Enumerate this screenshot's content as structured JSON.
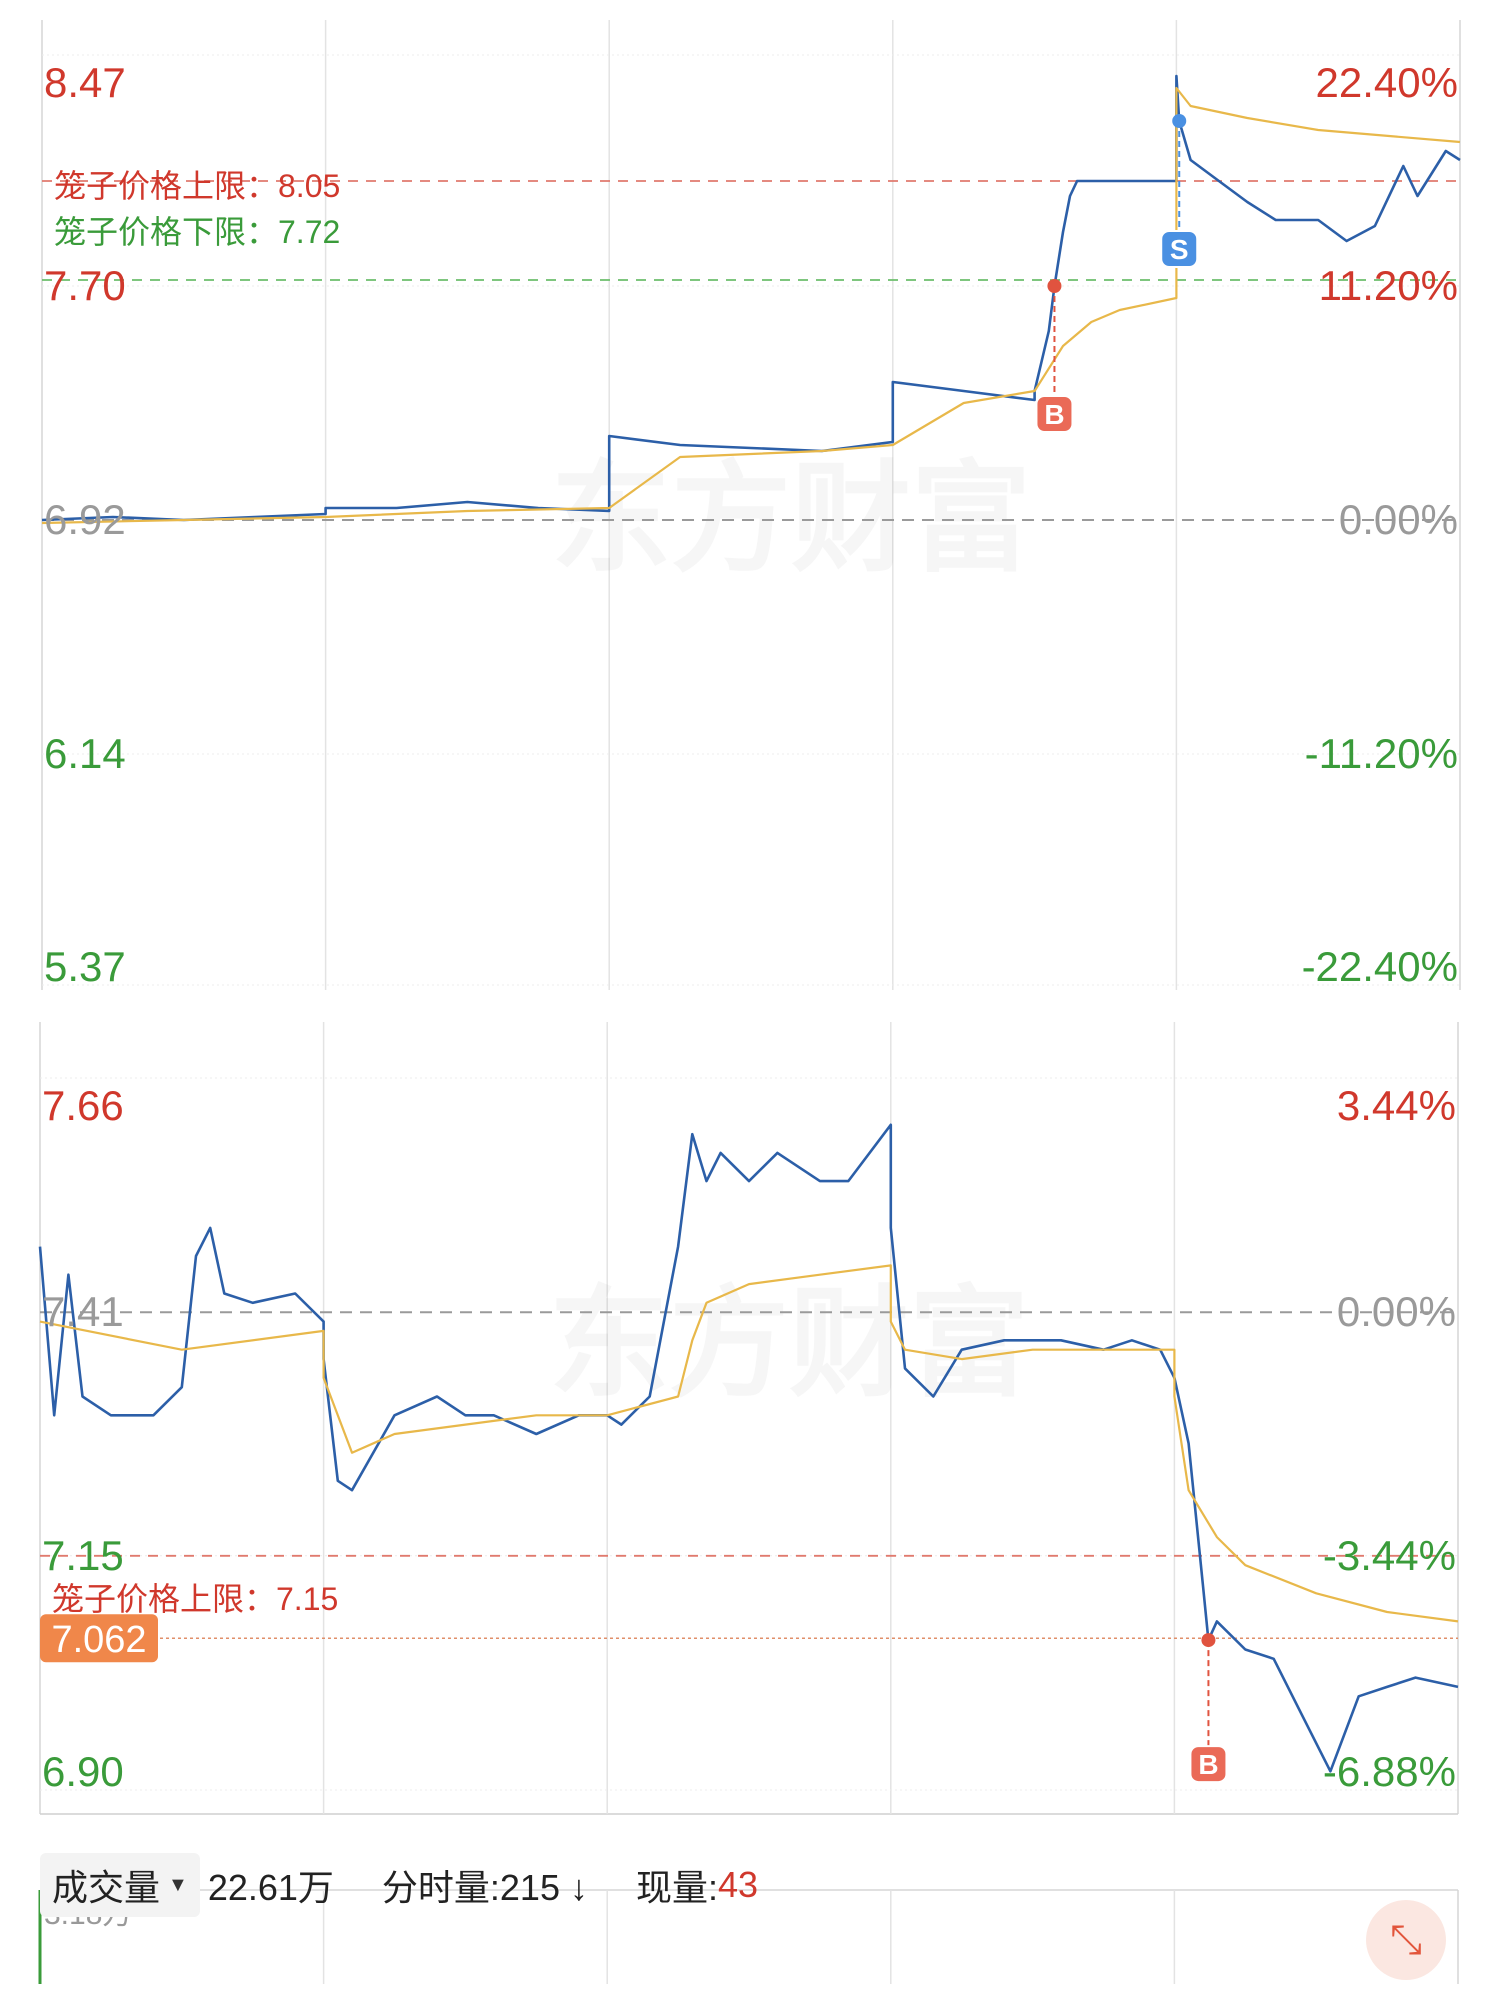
{
  "chart_data": [
    {
      "type": "line",
      "title": "",
      "watermark": "东方财富",
      "ylim": [
        5.37,
        8.47
      ],
      "y_ticks_left": [
        "8.47",
        "7.70",
        "6.92",
        "6.14",
        "5.37"
      ],
      "y_ticks_right": [
        "22.40%",
        "11.20%",
        "0.00%",
        "-11.20%",
        "-22.40%"
      ],
      "ref_price": 6.92,
      "cage_upper": {
        "label": "笼子价格上限：8.05",
        "value": 8.05
      },
      "cage_lower": {
        "label": "笼子价格下限：7.72",
        "value": 7.72
      },
      "markers": [
        {
          "label": "B",
          "x": 0.714,
          "y": 7.7
        },
        {
          "label": "S",
          "x": 0.802,
          "y": 8.25
        }
      ],
      "colors": {
        "price": "#2c5fa8",
        "avg": "#e8b84a",
        "up": "#d0382c",
        "down": "#3a9b3a",
        "buy_badge": "#ea6a57",
        "sell_badge": "#4a90e2"
      },
      "series": [
        {
          "role": "price",
          "x": [
            0,
            0.05,
            0.1,
            0.15,
            0.2,
            0.2,
            0.25,
            0.3,
            0.35,
            0.4,
            0.4,
            0.45,
            0.5,
            0.55,
            0.6,
            0.6,
            0.65,
            0.7,
            0.7,
            0.705,
            0.71,
            0.714,
            0.72,
            0.725,
            0.73,
            0.75,
            0.8,
            0.8,
            0.802,
            0.81,
            0.83,
            0.85,
            0.87,
            0.9,
            0.92,
            0.94,
            0.96,
            0.97,
            0.99,
            1.0
          ],
          "y": [
            6.92,
            6.93,
            6.92,
            6.93,
            6.94,
            6.96,
            6.96,
            6.98,
            6.96,
            6.95,
            7.2,
            7.17,
            7.16,
            7.15,
            7.18,
            7.38,
            7.35,
            7.32,
            7.35,
            7.45,
            7.55,
            7.7,
            7.88,
            8.0,
            8.05,
            8.05,
            8.05,
            8.4,
            8.25,
            8.12,
            8.05,
            7.98,
            7.92,
            7.92,
            7.85,
            7.9,
            8.1,
            8.0,
            8.15,
            8.12
          ]
        },
        {
          "role": "avg",
          "x": [
            0,
            0.1,
            0.2,
            0.3,
            0.4,
            0.45,
            0.5,
            0.55,
            0.6,
            0.65,
            0.7,
            0.72,
            0.74,
            0.76,
            0.8,
            0.8,
            0.81,
            0.85,
            0.9,
            0.95,
            1.0
          ],
          "y": [
            6.91,
            6.92,
            6.93,
            6.95,
            6.96,
            7.13,
            7.14,
            7.15,
            7.17,
            7.31,
            7.35,
            7.5,
            7.58,
            7.62,
            7.66,
            8.36,
            8.3,
            8.26,
            8.22,
            8.2,
            8.18
          ]
        }
      ]
    },
    {
      "type": "line",
      "title": "",
      "watermark": "东方财富",
      "ylim": [
        6.9,
        7.66
      ],
      "y_ticks_left": [
        "7.66",
        "7.41",
        "7.15",
        "6.90"
      ],
      "y_ticks_right": [
        "3.44%",
        "0.00%",
        "-3.44%",
        "-6.88%"
      ],
      "ref_price": 7.41,
      "cage_upper": {
        "label": "笼子价格上限：7.15",
        "value": 7.15
      },
      "current_price": {
        "label": "7.062",
        "value": 7.062
      },
      "markers": [
        {
          "label": "B",
          "x": 0.824,
          "y": 7.06
        }
      ],
      "colors": {
        "price": "#2c5fa8",
        "avg": "#e8b84a",
        "up": "#d0382c",
        "down": "#3a9b3a",
        "price_tag": "#f0874a",
        "buy_badge": "#ea6a57"
      },
      "series": [
        {
          "role": "price",
          "x": [
            0,
            0.01,
            0.02,
            0.03,
            0.05,
            0.08,
            0.1,
            0.11,
            0.12,
            0.13,
            0.15,
            0.18,
            0.2,
            0.2,
            0.21,
            0.22,
            0.25,
            0.28,
            0.3,
            0.32,
            0.35,
            0.38,
            0.4,
            0.41,
            0.43,
            0.45,
            0.46,
            0.47,
            0.48,
            0.5,
            0.52,
            0.55,
            0.57,
            0.6,
            0.6,
            0.61,
            0.63,
            0.65,
            0.68,
            0.7,
            0.72,
            0.75,
            0.77,
            0.79,
            0.8,
            0.81,
            0.82,
            0.824,
            0.83,
            0.85,
            0.87,
            0.89,
            0.91,
            0.93,
            0.95,
            0.97,
            1.0
          ],
          "y": [
            7.48,
            7.3,
            7.45,
            7.32,
            7.3,
            7.3,
            7.33,
            7.47,
            7.5,
            7.43,
            7.42,
            7.43,
            7.4,
            7.36,
            7.23,
            7.22,
            7.3,
            7.32,
            7.3,
            7.3,
            7.28,
            7.3,
            7.3,
            7.29,
            7.32,
            7.48,
            7.6,
            7.55,
            7.58,
            7.55,
            7.58,
            7.55,
            7.55,
            7.61,
            7.5,
            7.35,
            7.32,
            7.37,
            7.38,
            7.38,
            7.38,
            7.37,
            7.38,
            7.37,
            7.34,
            7.27,
            7.12,
            7.06,
            7.08,
            7.05,
            7.04,
            6.98,
            6.92,
            7.0,
            7.01,
            7.02,
            7.01
          ]
        },
        {
          "role": "avg",
          "x": [
            0,
            0.1,
            0.2,
            0.2,
            0.22,
            0.25,
            0.3,
            0.35,
            0.4,
            0.45,
            0.46,
            0.47,
            0.5,
            0.55,
            0.6,
            0.6,
            0.61,
            0.65,
            0.7,
            0.75,
            0.8,
            0.8,
            0.81,
            0.83,
            0.85,
            0.9,
            0.95,
            1.0
          ],
          "y": [
            7.4,
            7.37,
            7.39,
            7.34,
            7.26,
            7.28,
            7.29,
            7.3,
            7.3,
            7.32,
            7.38,
            7.42,
            7.44,
            7.45,
            7.46,
            7.4,
            7.37,
            7.36,
            7.37,
            7.37,
            7.37,
            7.32,
            7.22,
            7.17,
            7.14,
            7.11,
            7.09,
            7.08
          ]
        }
      ]
    },
    {
      "type": "bar",
      "title": "",
      "y_max_label": "3.18万"
    }
  ],
  "volume_bar": {
    "selector_label": "成交量",
    "total_volume": "22.61万",
    "minute_volume": "分时量:215 ↓",
    "current_volume_label": "现量:",
    "current_volume_value": "43"
  },
  "icons": {
    "expand": "expand-icon",
    "caret": "caret-down-icon"
  }
}
